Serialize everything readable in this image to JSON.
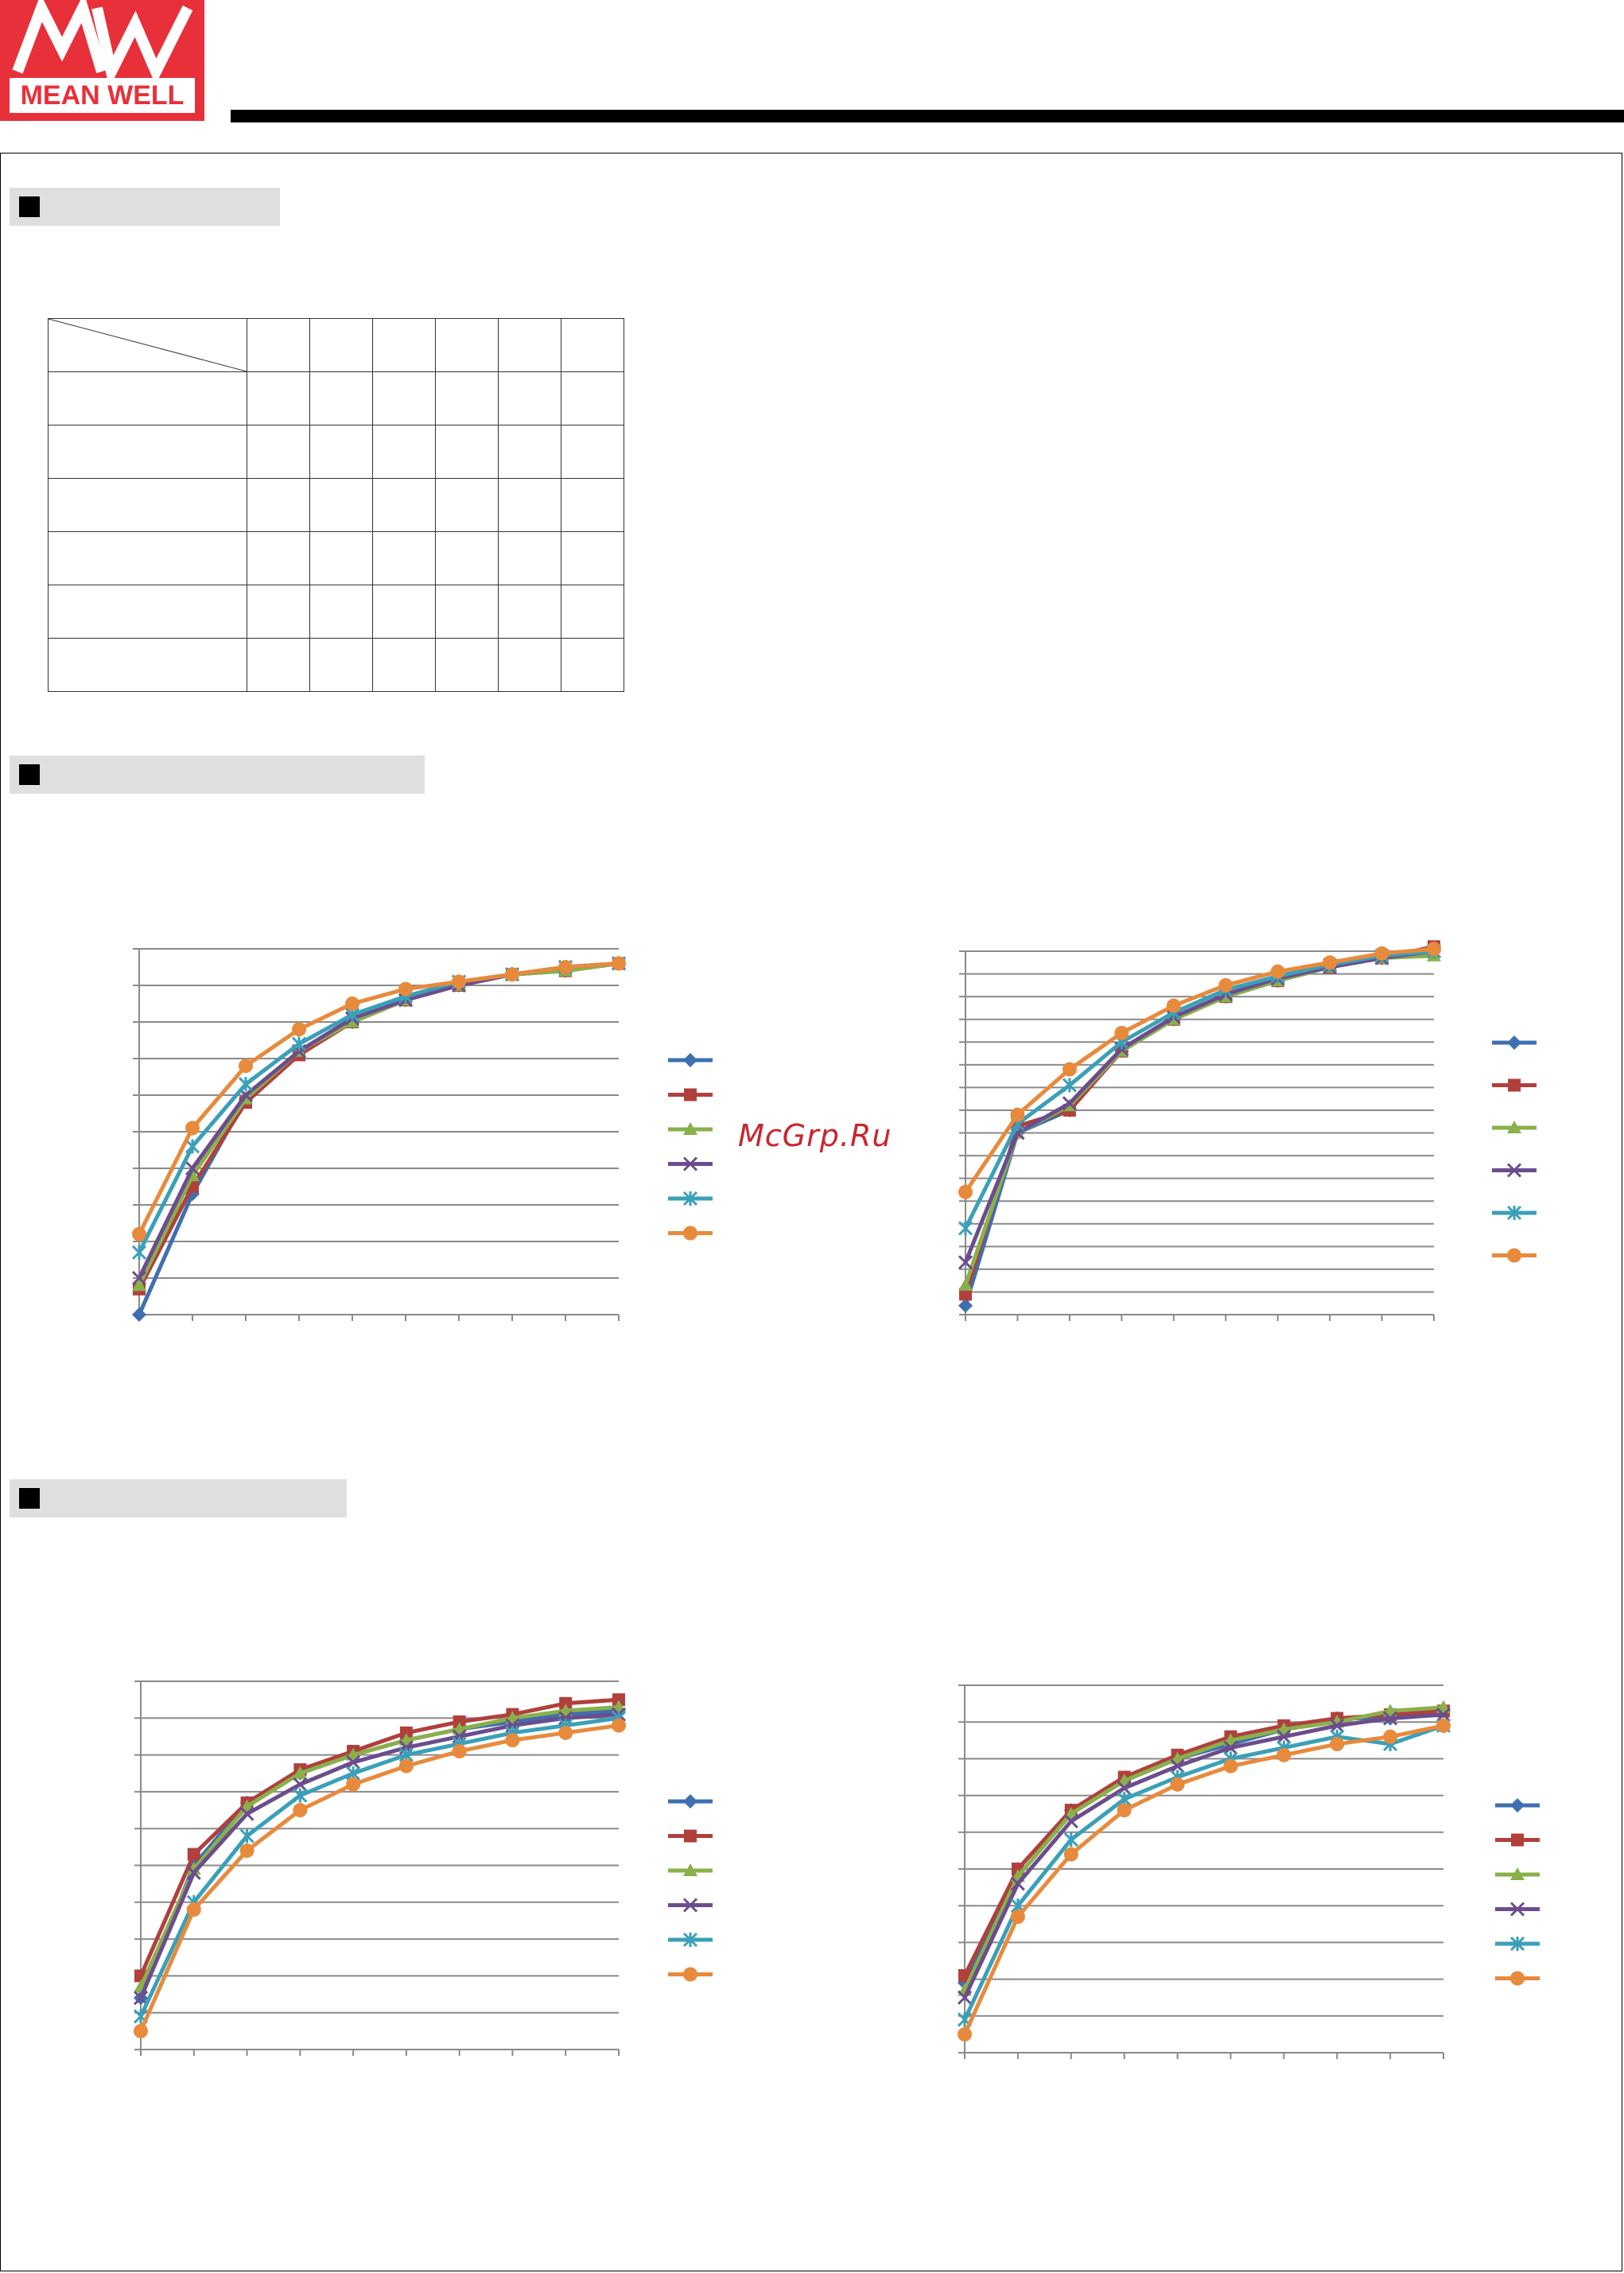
{
  "brand": {
    "logo_text": "MEAN WELL",
    "logo_mark": "MW",
    "color": "#e8303a"
  },
  "watermark": {
    "text": "McGrp.Ru"
  },
  "sections": [
    {
      "title": ""
    },
    {
      "title": ""
    },
    {
      "title": ""
    }
  ],
  "spec_table": {
    "rows": 7,
    "cols": 7,
    "cells": []
  },
  "colors": [
    "#3e6fb0",
    "#b0403c",
    "#8ab04a",
    "#6b4d8e",
    "#3aa0b8",
    "#e88a3c"
  ],
  "chart_data": [
    {
      "type": "line",
      "title": "",
      "xlabel": "",
      "ylabel": "",
      "grid": true,
      "legend": "right",
      "ylim": [
        0,
        10
      ],
      "x": [
        0,
        1,
        2,
        3,
        4,
        5,
        6,
        7,
        8,
        9
      ],
      "series": [
        {
          "values": [
            0.0,
            3.3,
            5.9,
            7.2,
            8.0,
            8.6,
            9.0,
            9.3,
            9.4,
            9.6
          ]
        },
        {
          "values": [
            0.7,
            3.5,
            5.8,
            7.1,
            8.0,
            8.6,
            9.0,
            9.3,
            9.4,
            9.6
          ]
        },
        {
          "values": [
            0.8,
            3.8,
            5.9,
            7.2,
            8.0,
            8.6,
            9.0,
            9.3,
            9.4,
            9.6
          ]
        },
        {
          "values": [
            1.0,
            4.0,
            6.0,
            7.2,
            8.1,
            8.6,
            9.0,
            9.3,
            9.5,
            9.6
          ]
        },
        {
          "values": [
            1.7,
            4.6,
            6.3,
            7.4,
            8.2,
            8.7,
            9.1,
            9.3,
            9.5,
            9.6
          ]
        },
        {
          "values": [
            2.2,
            5.1,
            6.8,
            7.8,
            8.5,
            8.9,
            9.1,
            9.3,
            9.5,
            9.6
          ]
        }
      ]
    },
    {
      "type": "line",
      "title": "",
      "xlabel": "",
      "ylabel": "",
      "grid": true,
      "legend": "right",
      "ylim": [
        0,
        16
      ],
      "x": [
        0,
        1,
        2,
        3,
        4,
        5,
        6,
        7,
        8,
        9
      ],
      "series": [
        {
          "values": [
            0.4,
            8.0,
            9.0,
            11.6,
            13.0,
            14.0,
            14.7,
            15.3,
            15.7,
            16.0
          ]
        },
        {
          "values": [
            0.9,
            8.3,
            9.0,
            11.6,
            13.0,
            14.0,
            14.7,
            15.3,
            15.7,
            16.2
          ]
        },
        {
          "values": [
            1.3,
            8.0,
            9.2,
            11.6,
            13.0,
            14.0,
            14.7,
            15.3,
            15.7,
            15.8
          ]
        },
        {
          "values": [
            2.3,
            8.0,
            9.3,
            11.7,
            13.1,
            14.1,
            14.8,
            15.3,
            15.7,
            16.0
          ]
        },
        {
          "values": [
            3.8,
            8.4,
            10.1,
            12.0,
            13.3,
            14.3,
            14.9,
            15.4,
            15.8,
            16.0
          ]
        },
        {
          "values": [
            5.4,
            8.8,
            10.8,
            12.4,
            13.6,
            14.5,
            15.1,
            15.5,
            15.9,
            16.1
          ]
        }
      ]
    },
    {
      "type": "line",
      "title": "",
      "xlabel": "",
      "ylabel": "",
      "grid": true,
      "legend": "right",
      "ylim": [
        0,
        10
      ],
      "x": [
        0,
        1,
        2,
        3,
        4,
        5,
        6,
        7,
        8,
        9
      ],
      "series": [
        {
          "values": [
            1.4,
            5.0,
            6.7,
            7.5,
            8.0,
            8.4,
            8.7,
            8.9,
            9.1,
            9.2
          ]
        },
        {
          "values": [
            2.0,
            5.3,
            6.7,
            7.6,
            8.1,
            8.6,
            8.9,
            9.1,
            9.4,
            9.5
          ]
        },
        {
          "values": [
            1.7,
            4.9,
            6.6,
            7.5,
            8.0,
            8.4,
            8.7,
            9.0,
            9.2,
            9.3
          ]
        },
        {
          "values": [
            1.4,
            4.8,
            6.4,
            7.2,
            7.8,
            8.2,
            8.5,
            8.8,
            9.0,
            9.1
          ]
        },
        {
          "values": [
            0.9,
            4.0,
            5.8,
            6.9,
            7.5,
            8.0,
            8.3,
            8.6,
            8.8,
            9.0
          ]
        },
        {
          "values": [
            0.5,
            3.8,
            5.4,
            6.5,
            7.2,
            7.7,
            8.1,
            8.4,
            8.6,
            8.8
          ]
        }
      ]
    },
    {
      "type": "line",
      "title": "",
      "xlabel": "",
      "ylabel": "",
      "grid": true,
      "legend": "right",
      "ylim": [
        0,
        10
      ],
      "x": [
        0,
        1,
        2,
        3,
        4,
        5,
        6,
        7,
        8,
        9
      ],
      "series": [
        {
          "values": [
            1.9,
            5.0,
            6.6,
            7.4,
            8.0,
            8.4,
            8.8,
            9.1,
            9.1,
            9.3
          ]
        },
        {
          "values": [
            2.1,
            5.0,
            6.6,
            7.5,
            8.1,
            8.6,
            8.9,
            9.1,
            9.2,
            9.3
          ]
        },
        {
          "values": [
            1.7,
            4.8,
            6.5,
            7.4,
            8.0,
            8.5,
            8.8,
            9.0,
            9.3,
            9.4
          ]
        },
        {
          "values": [
            1.5,
            4.6,
            6.3,
            7.2,
            7.8,
            8.3,
            8.6,
            8.9,
            9.1,
            9.2
          ]
        },
        {
          "values": [
            0.9,
            4.0,
            5.8,
            6.9,
            7.5,
            8.0,
            8.3,
            8.6,
            8.4,
            8.9
          ]
        },
        {
          "values": [
            0.5,
            3.7,
            5.4,
            6.6,
            7.3,
            7.8,
            8.1,
            8.4,
            8.6,
            8.9
          ]
        }
      ]
    }
  ]
}
